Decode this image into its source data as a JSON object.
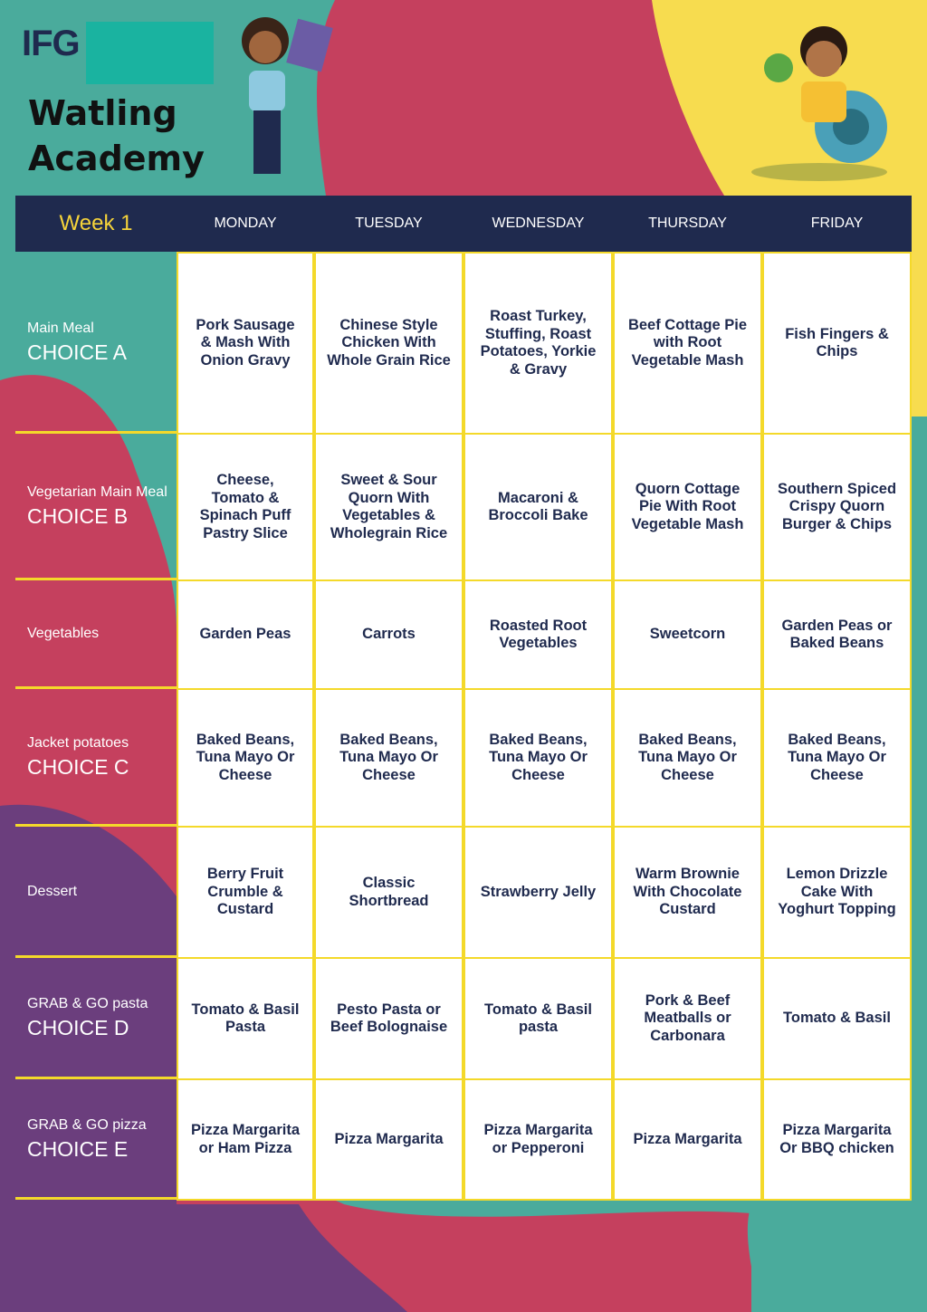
{
  "header": {
    "logo": "IFG",
    "school": [
      "Watling",
      "Academy"
    ]
  },
  "table": {
    "week": "Week 1",
    "days": [
      "MONDAY",
      "TUESDAY",
      "WEDNESDAY",
      "THURSDAY",
      "FRIDAY"
    ],
    "rows": [
      {
        "label": [
          "Main Meal",
          "CHOICE A"
        ],
        "cells": [
          "Pork Sausage & Mash With Onion Gravy",
          "Chinese Style Chicken With Whole Grain Rice",
          "Roast Turkey, Stuffing, Roast Potatoes, Yorkie & Gravy",
          "Beef Cottage Pie with Root Vegetable Mash",
          "Fish Fingers & Chips"
        ]
      },
      {
        "label": [
          "Vegetarian Main Meal",
          "CHOICE B"
        ],
        "cells": [
          "Cheese, Tomato & Spinach Puff Pastry Slice",
          "Sweet & Sour Quorn With Vegetables & Wholegrain Rice",
          "Macaroni & Broccoli Bake",
          "Quorn Cottage Pie With Root Vegetable Mash",
          "Southern Spiced Crispy Quorn Burger & Chips"
        ]
      },
      {
        "label": [
          "Vegetables"
        ],
        "cells": [
          "Garden Peas",
          "Carrots",
          "Roasted Root Vegetables",
          "Sweetcorn",
          "Garden Peas or Baked Beans"
        ]
      },
      {
        "label": [
          "Jacket potatoes",
          "CHOICE C"
        ],
        "cells": [
          "Baked Beans, Tuna Mayo Or Cheese",
          "Baked Beans, Tuna Mayo Or Cheese",
          "Baked Beans, Tuna Mayo Or Cheese",
          "Baked Beans, Tuna Mayo Or Cheese",
          "Baked Beans, Tuna Mayo Or Cheese"
        ]
      },
      {
        "label": [
          "Dessert"
        ],
        "cells": [
          "Berry Fruit Crumble & Custard",
          "Classic Shortbread",
          "Strawberry Jelly",
          "Warm Brownie With Chocolate Custard",
          "Lemon Drizzle Cake With Yoghurt Topping"
        ]
      },
      {
        "label": [
          "GRAB & GO pasta",
          "CHOICE D"
        ],
        "cells": [
          "Tomato & Basil Pasta",
          "Pesto Pasta or Beef Bolognaise",
          "Tomato & Basil pasta",
          "Pork & Beef Meatballs or Carbonara",
          "Tomato & Basil"
        ]
      },
      {
        "label": [
          "GRAB & GO pizza",
          "CHOICE E"
        ],
        "cells": [
          "Pizza Margarita or Ham Pizza",
          "Pizza Margarita",
          "Pizza Margarita or Pepperoni",
          "Pizza Margarita",
          "Pizza Margarita Or BBQ chicken"
        ]
      }
    ]
  }
}
